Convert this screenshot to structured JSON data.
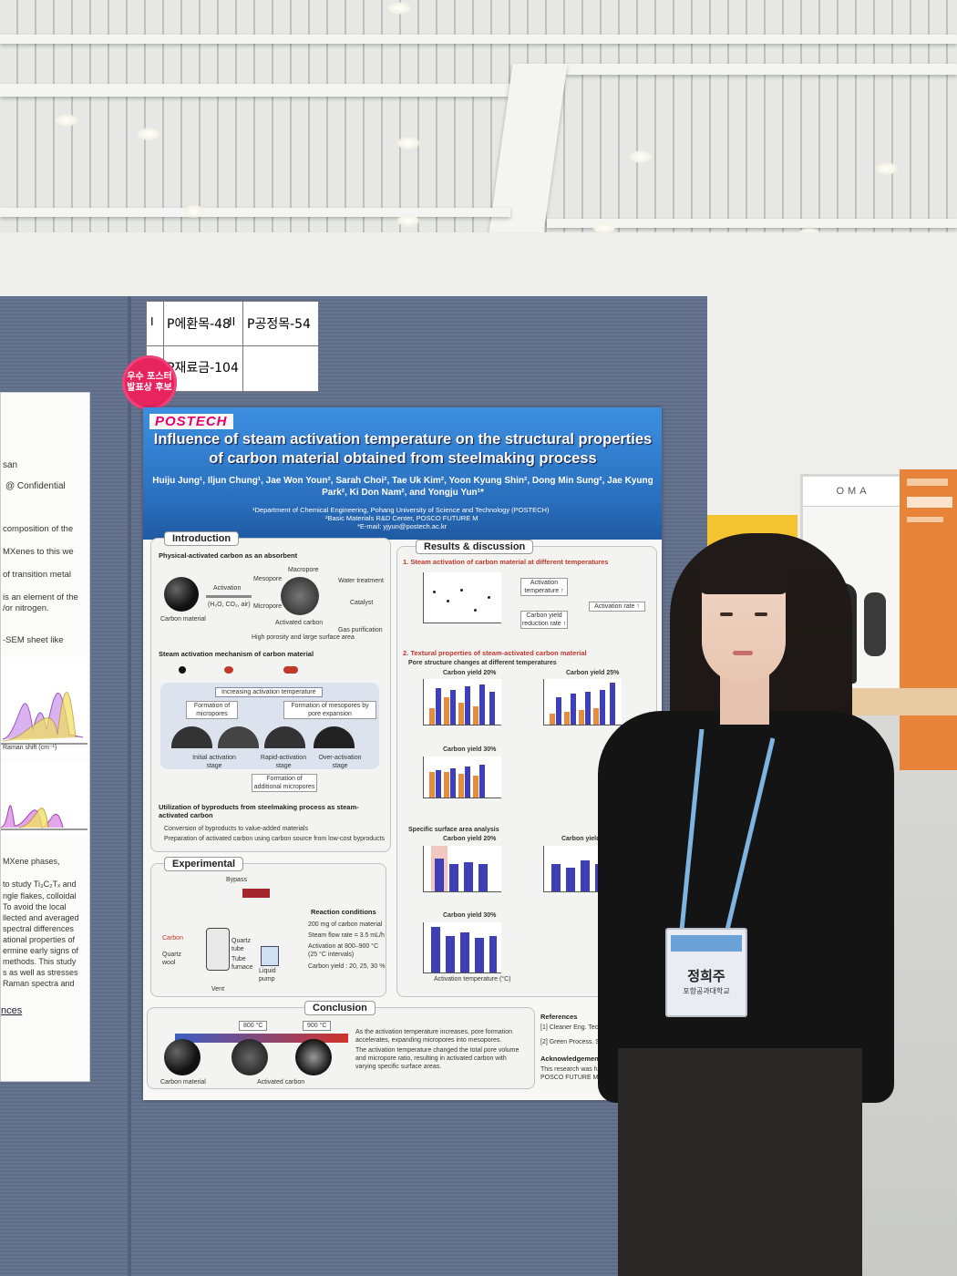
{
  "labels": {
    "booth_1": "P에환목-48",
    "booth_2": "P공정목-54",
    "booth_3": "P재료금-104",
    "roman_1": "I",
    "roman_2": "II",
    "award_sticker": "우수 포스터 발표상 후보"
  },
  "poster": {
    "logo": "POSTECH",
    "title": "Influence of steam activation temperature on the structural properties of carbon material obtained from steelmaking process",
    "authors": "Huiju Jung¹, Iljun Chung¹, Jae Won Youn², Sarah Choi², Tae Uk Kim², Yoon Kyung Shin², Dong Min Sung², Jae Kyung Park², Ki Don Nam², and Yongju Yun¹*",
    "affiliation_1": "¹Department of Chemical Engineering, Pohang University of Science and Technology (POSTECH)",
    "affiliation_2": "²Basic Materials R&D Center, POSCO FUTURE M",
    "email": "*E-mail: yjyun@postech.ac.kr",
    "intro": {
      "title": "Introduction",
      "sub1": "Physical-activated carbon as an absorbent",
      "activation": "Activation",
      "gases": "(H₂O, CO₂, air)",
      "macropore": "Macropore",
      "mesopore": "Mesopore",
      "micropore": "Micropore",
      "carbon_material": "Carbon material",
      "activated_carbon": "Activated carbon",
      "water_treatment": "Water treatment",
      "catalyst": "Catalyst",
      "gas_purification": "Gas purification",
      "porosity_note": "High porosity and large surface area",
      "sub2": "Steam activation mechanism of carbon material",
      "increasing_temp": "Increasing activation temperature",
      "formation_micro": "Formation of micropores",
      "formation_meso": "Formation of mesopores by pore expansion",
      "stage1": "Initial activation stage",
      "stage2": "Rapid-activation stage",
      "stage3": "Over-activation stage",
      "additional_micro": "Formation of additional micropores",
      "sub3": "Utilization of byproducts from steelmaking process as steam-activated carbon",
      "bullet1": "Conversion of byproducts to value-added materials",
      "bullet2": "Preparation of activated carbon using carbon source from low-cost byproducts"
    },
    "experimental": {
      "title": "Experimental",
      "bypass": "Bypass",
      "carbon": "Carbon",
      "quartz_wool": "Quartz wool",
      "quartz_tube": "Quartz tube",
      "tube_furnace": "Tube furnace",
      "liquid_pump": "Liquid pump",
      "vent": "Vent",
      "reaction_conditions": "Reaction conditions",
      "cond1": "200 mg of carbon material",
      "cond2": "Steam flow rate = 3.5 mL/h",
      "cond3": "Activation at 800–900 °C (25 °C intervals)",
      "cond4": "Carbon yield : 20, 25, 30 %"
    },
    "results": {
      "title": "Results & discussion",
      "sub1": "1. Steam activation of carbon material at different temperatures",
      "activation_temperature": "Activation temperature ↑",
      "carbon_yield_reduction": "Carbon yield reduction rate ↑",
      "activation_rate": "Activation rate ↑",
      "sub2": "2. Textural properties of steam-activated carbon material",
      "pore_changes": "Pore structure changes at different temperatures",
      "cy20": "Carbon yield 20%",
      "cy25": "Carbon yield 25%",
      "cy30": "Carbon yield 30%",
      "ssa": "Specific surface area analysis",
      "x_axis": "Activation temperature (°C)"
    },
    "conclusion": {
      "title": "Conclusion",
      "t800": "800 °C",
      "t900": "900 °C",
      "carbon_material": "Carbon material",
      "activated_carbon": "Activated carbon",
      "point1": "As the activation temperature increases, pore formation accelerates, expanding micropores into mesopores.",
      "point2": "The activation temperature changed the total pore volume and micropore ratio, resulting in activated carbon with varying specific surface areas."
    },
    "references": {
      "title": "References",
      "ref1": "[1] Cleaner Eng. Technol., 20",
      "ref2": "[2] Green Process. Synth., 20",
      "ack_title": "Acknowledgements",
      "ack": "This research was funded by POSCO FUTURE M."
    }
  },
  "left_poster": {
    "line1": "san",
    "line2": "@ Confidential",
    "line3": "composition of the",
    "line4": "MXenes to this we",
    "line5": "of transition metal",
    "line6": "is an element of the",
    "line7": "/or nitrogen.",
    "line8": "-SEM sheet like",
    "line9": "Raman shift (cm⁻¹)",
    "line10": "MXene phases,",
    "line11": "to study Ti₃C₂Tₓ and",
    "line12": "ngle flakes, colloidal",
    "line13": "To avoid the local",
    "line14": "llected and averaged",
    "line15": "spectral differences",
    "line16": "ational properties of",
    "line17": "ermine early signs of",
    "line18": "methods. This study",
    "line19": "s as well as stresses",
    "line20": "Raman spectra and",
    "line21": "nces"
  },
  "badge": {
    "name": "정희주",
    "affiliation": "포항공과대학교"
  },
  "background": {
    "booth_sign": "OMA"
  }
}
